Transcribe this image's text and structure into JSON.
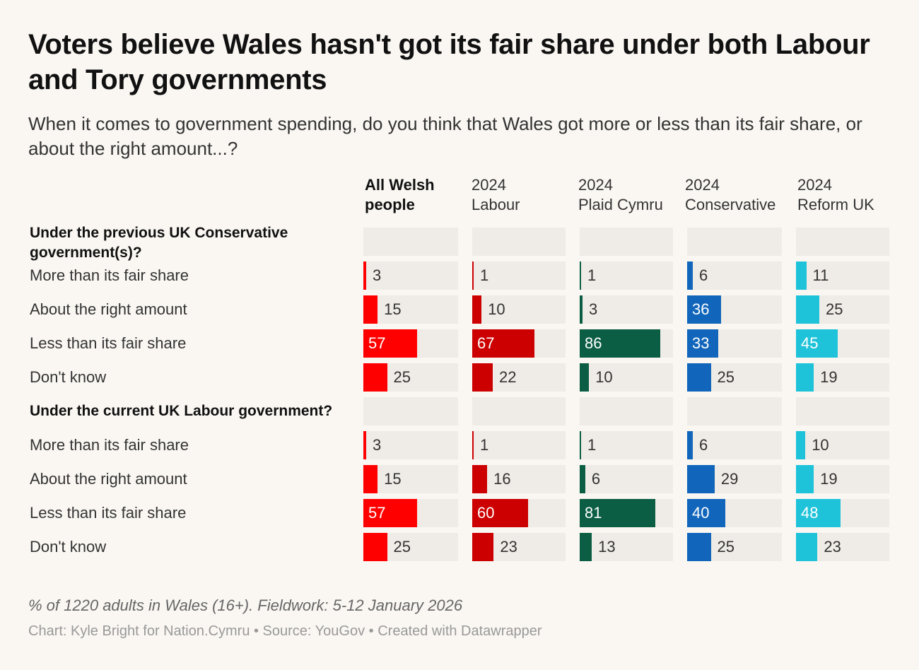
{
  "title": "Voters believe Wales hasn't got its fair share under both Labour and Tory governments",
  "subtitle": "When it comes to government spending, do you think that Wales got more or less than its fair share, or about the right amount...?",
  "note": "% of 1220 adults in Wales (16+). Fieldwork: 5-12 January 2026",
  "credit": "Chart: Kyle Bright for Nation.Cymru • Source: YouGov • Created with Datawrapper",
  "chart_data": {
    "type": "bar",
    "max_value": 100,
    "columns": [
      {
        "label_line1": "All Welsh",
        "label_line2": "people",
        "color": "#ff0000",
        "bold": true
      },
      {
        "label_line1": "2024",
        "label_line2": "Labour",
        "color": "#cc0000",
        "bold": false
      },
      {
        "label_line1": "2024",
        "label_line2": "Plaid Cymru",
        "color": "#0b5e43",
        "bold": false
      },
      {
        "label_line1": "2024",
        "label_line2": "Conservative",
        "color": "#1166bb",
        "bold": false
      },
      {
        "label_line1": "2024",
        "label_line2": "Reform UK",
        "color": "#1fc3d9",
        "bold": false
      }
    ],
    "groups": [
      {
        "label": "Under the previous UK Conservative government(s)?",
        "rows": [
          {
            "label": "More than its fair share",
            "values": [
              3,
              1,
              1,
              6,
              11
            ]
          },
          {
            "label": "About the right amount",
            "values": [
              15,
              10,
              3,
              36,
              25
            ]
          },
          {
            "label": "Less than its fair share",
            "values": [
              57,
              67,
              86,
              33,
              45
            ]
          },
          {
            "label": "Don't know",
            "values": [
              25,
              22,
              10,
              25,
              19
            ]
          }
        ]
      },
      {
        "label": "Under the current UK Labour government?",
        "rows": [
          {
            "label": "More than its fair share",
            "values": [
              3,
              1,
              1,
              6,
              10
            ]
          },
          {
            "label": "About the right amount",
            "values": [
              15,
              16,
              6,
              29,
              19
            ]
          },
          {
            "label": "Less than its fair share",
            "values": [
              57,
              60,
              81,
              40,
              48
            ]
          },
          {
            "label": "Don't know",
            "values": [
              25,
              23,
              13,
              25,
              23
            ]
          }
        ]
      }
    ]
  }
}
